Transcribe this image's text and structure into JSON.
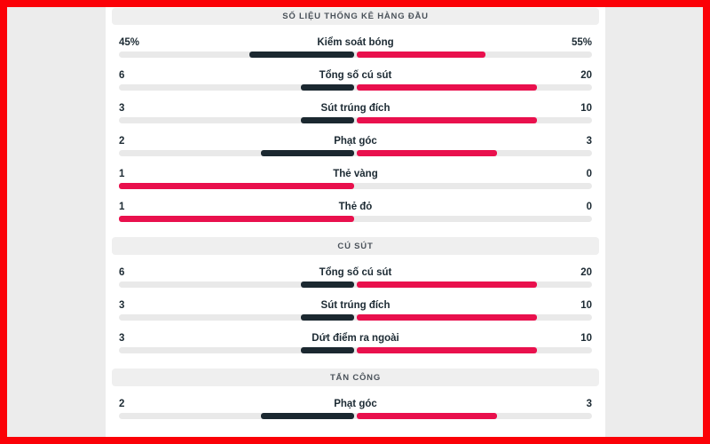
{
  "colors": {
    "frame_border": "#fb0107",
    "page_background": "#ececec",
    "card_background": "#ffffff",
    "section_header_background": "#efefef",
    "section_header_text": "#4a525a",
    "stat_text": "#1c2a33",
    "bar_track": "#e9e9e9",
    "bar_leading_red": "#e9104d",
    "bar_trailing_dark": "#1b2830"
  },
  "stats_panel": {
    "sections": [
      {
        "title": "SỐ LIỆU THỐNG KÊ HÀNG ĐẦU",
        "rows": [
          {
            "label": "Kiểm soát bóng",
            "left_display": "45%",
            "right_display": "55%",
            "left_value": 45,
            "right_value": 55
          },
          {
            "label": "Tổng số cú sút",
            "left_display": "6",
            "right_display": "20",
            "left_value": 6,
            "right_value": 20
          },
          {
            "label": "Sút trúng đích",
            "left_display": "3",
            "right_display": "10",
            "left_value": 3,
            "right_value": 10
          },
          {
            "label": "Phạt góc",
            "left_display": "2",
            "right_display": "3",
            "left_value": 2,
            "right_value": 3
          },
          {
            "label": "Thẻ vàng",
            "left_display": "1",
            "right_display": "0",
            "left_value": 1,
            "right_value": 0
          },
          {
            "label": "Thẻ đỏ",
            "left_display": "1",
            "right_display": "0",
            "left_value": 1,
            "right_value": 0
          }
        ]
      },
      {
        "title": "CÚ SÚT",
        "rows": [
          {
            "label": "Tổng số cú sút",
            "left_display": "6",
            "right_display": "20",
            "left_value": 6,
            "right_value": 20
          },
          {
            "label": "Sút trúng đích",
            "left_display": "3",
            "right_display": "10",
            "left_value": 3,
            "right_value": 10
          },
          {
            "label": "Dứt điểm ra ngoài",
            "left_display": "3",
            "right_display": "10",
            "left_value": 3,
            "right_value": 10
          }
        ]
      },
      {
        "title": "TẤN CÔNG",
        "rows": [
          {
            "label": "Phạt góc",
            "left_display": "2",
            "right_display": "3",
            "left_value": 2,
            "right_value": 3
          }
        ]
      }
    ]
  }
}
